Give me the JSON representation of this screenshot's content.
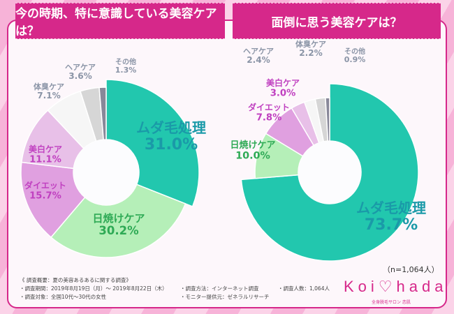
{
  "chart_data": [
    {
      "type": "pie",
      "donut": true,
      "title": "今の時期、特に意識している美容ケアは？",
      "categories": [
        "ムダ毛処理",
        "日焼けケア",
        "ダイエット",
        "美白ケア",
        "体臭ケア",
        "ヘアケア",
        "その他"
      ],
      "values": [
        31.0,
        30.2,
        15.7,
        11.1,
        7.1,
        3.6,
        1.3
      ],
      "labels": [
        "31.0%",
        "30.2%",
        "15.7%",
        "11.1%",
        "7.1%",
        "3.6%",
        "1.3%"
      ],
      "colors": [
        "#22c7ae",
        "#b5efb8",
        "#e0a0e0",
        "#e8c0e8",
        "#f6f6f6",
        "#d6d6d6",
        "#888899"
      ],
      "label_colors": [
        "#1a9aa8",
        "#2eaa55",
        "#c040c0",
        "#c040c0",
        "#8a94a6",
        "#8a94a6",
        "#8a94a6"
      ]
    },
    {
      "type": "pie",
      "donut": true,
      "title": "面倒に思う美容ケアは？",
      "categories": [
        "ムダ毛処理",
        "日焼けケア",
        "ダイエット",
        "美白ケア",
        "ヘアケア",
        "体臭ケア",
        "その他"
      ],
      "values": [
        73.7,
        10.0,
        7.8,
        3.0,
        2.4,
        2.2,
        0.9
      ],
      "labels": [
        "73.7%",
        "10.0%",
        "7.8%",
        "3.0%",
        "2.4%",
        "2.2%",
        "0.9%"
      ],
      "colors": [
        "#22c7ae",
        "#b5efb8",
        "#e0a0e0",
        "#e8c0e8",
        "#f6f6f6",
        "#d6d6d6",
        "#888899"
      ],
      "label_colors": [
        "#1a9aa8",
        "#2eaa55",
        "#c040c0",
        "#c040c0",
        "#8a94a6",
        "#8a94a6",
        "#8a94a6"
      ]
    }
  ],
  "sample": "（n=1,064人）",
  "notes": {
    "heading": "《 調査概要：夏の美容あるあるに関する調査》",
    "period": "・調査期間：2019年8月19日（月）～ 2019年8月22日（木）",
    "method": "・調査方法：インターネット調査",
    "count": "・調査人数：1,064人",
    "target": "・調査対象：全国10代～30代の女性",
    "provider": "・モニター提供元：ゼネラルリサーチ"
  },
  "logo": {
    "text": "Koi♡hada",
    "sub": "全身脱毛サロン 恋肌"
  }
}
